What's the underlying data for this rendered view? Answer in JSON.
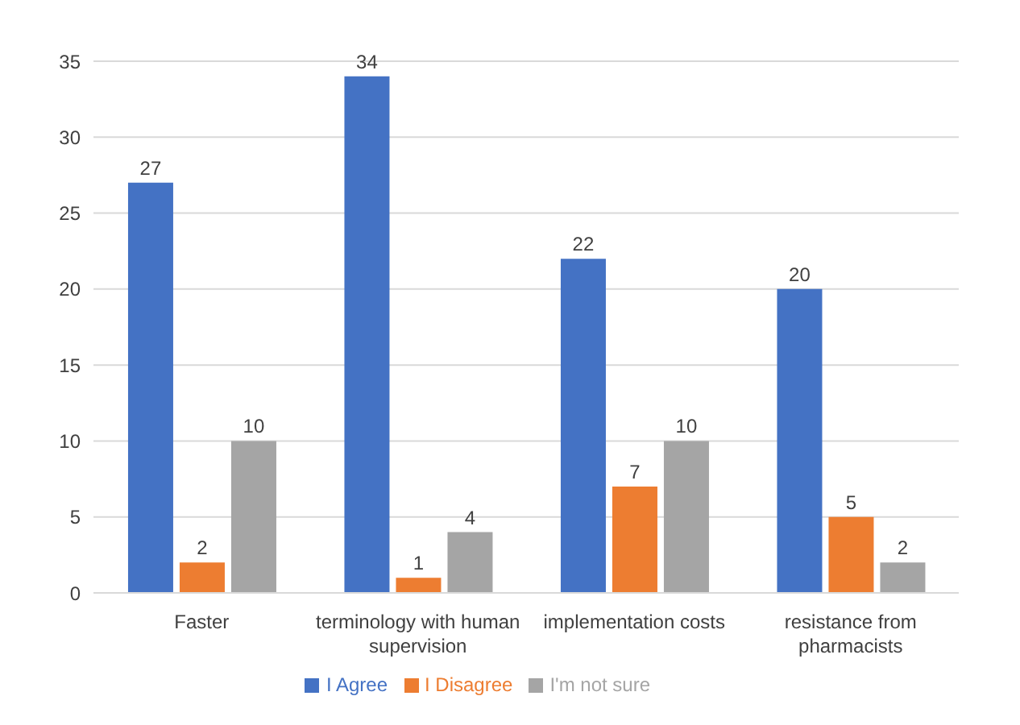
{
  "chart_data": {
    "type": "bar",
    "categories": [
      "Faster",
      "terminology with human supervision",
      "implementation costs",
      "resistance from pharmacists"
    ],
    "series": [
      {
        "name": "I Agree",
        "color": "#4472c4",
        "values": [
          27,
          34,
          22,
          20
        ]
      },
      {
        "name": "I Disagree",
        "color": "#ed7d31",
        "values": [
          2,
          1,
          7,
          5
        ]
      },
      {
        "name": "I'm not sure",
        "color": "#a5a5a5",
        "values": [
          10,
          4,
          10,
          2
        ]
      }
    ],
    "ylim": [
      0,
      35
    ],
    "yticks": [
      0,
      5,
      10,
      15,
      20,
      25,
      30,
      35
    ],
    "grid": "y",
    "legend": "bottom",
    "data_labels": true
  }
}
